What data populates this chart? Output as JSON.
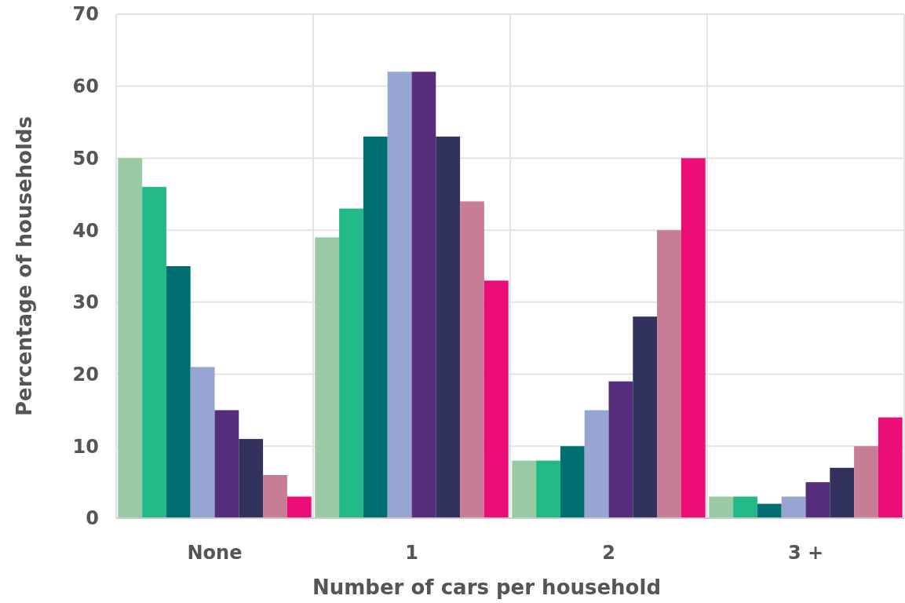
{
  "chart_data": {
    "type": "bar",
    "xlabel": "Number of cars per household",
    "ylabel": "Percentage of households",
    "categories": [
      "None",
      "1",
      "2",
      "3 +"
    ],
    "series": [
      {
        "color": "#99c9a5",
        "values": [
          50,
          39,
          8,
          3
        ]
      },
      {
        "color": "#22b986",
        "values": [
          46,
          43,
          8,
          3
        ]
      },
      {
        "color": "#006f72",
        "values": [
          35,
          53,
          10,
          2
        ]
      },
      {
        "color": "#97a5d2",
        "values": [
          21,
          62,
          15,
          3
        ]
      },
      {
        "color": "#562e7b",
        "values": [
          15,
          62,
          19,
          5
        ]
      },
      {
        "color": "#32325e",
        "values": [
          11,
          53,
          28,
          7
        ]
      },
      {
        "color": "#c87d97",
        "values": [
          6,
          44,
          40,
          10
        ]
      },
      {
        "color": "#ec0d76",
        "values": [
          3,
          33,
          50,
          14
        ]
      }
    ],
    "ylim": [
      0,
      70
    ],
    "yticks": [
      0,
      10,
      20,
      30,
      40,
      50,
      60,
      70
    ],
    "grid": true
  }
}
